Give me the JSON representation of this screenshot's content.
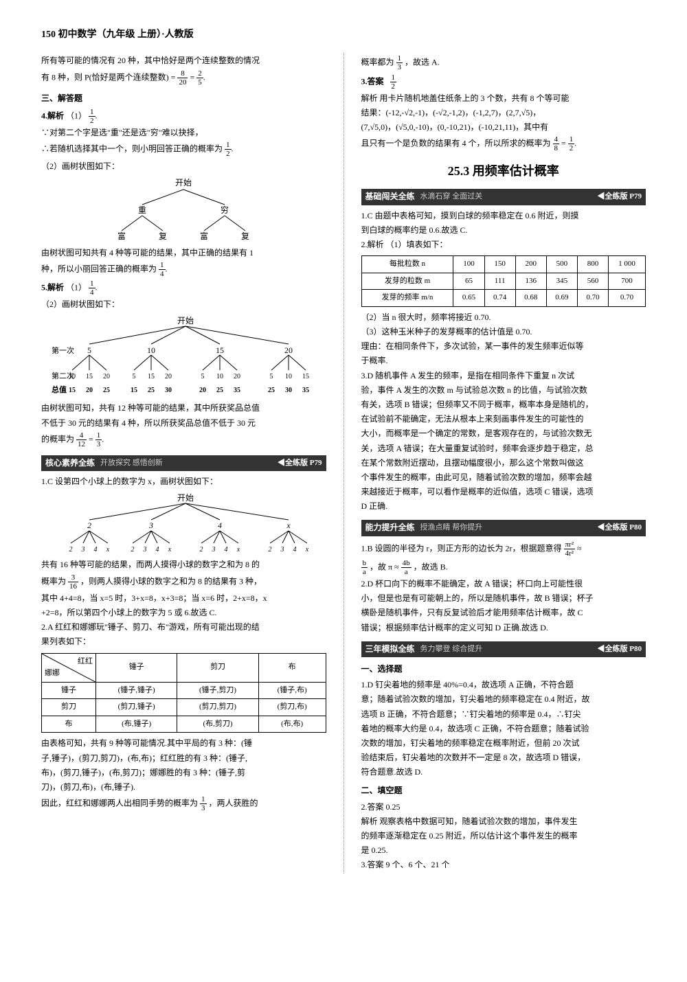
{
  "header": "150  初中数学（九年级  上册）·人教版",
  "left": {
    "intro_a": "所有等可能的情况有 20 种，其中恰好是两个连续整数的情况",
    "intro_b": "有 8 种，则 P(恰好是两个连续整数) = ",
    "intro_frac1_n": "8",
    "intro_frac1_d": "20",
    "intro_eq": " = ",
    "intro_frac2_n": "2",
    "intro_frac2_d": "5",
    "sec3": "三、解答题",
    "q4_label": "4.解析",
    "q4_1": "（1）",
    "q4_frac_n": "1",
    "q4_frac_d": "2",
    "q4_l1": "∵对第二个字是选\"重\"还是选\"穷\"难以抉择，",
    "q4_l2": "∴若随机选择其中一个，则小明回答正确的概率为 ",
    "q4_l3": "（2）画树状图如下：",
    "tree1": {
      "start": "开始",
      "l1": [
        "重",
        "穷"
      ],
      "l2": [
        "富",
        "复",
        "富",
        "复"
      ]
    },
    "q4_res1": "由树状图可知共有 4 种等可能的结果，其中正确的结果有 1",
    "q4_res2": "种，所以小丽回答正确的概率为 ",
    "q4_res_frac_n": "1",
    "q4_res_frac_d": "4",
    "q5_label": "5.解析",
    "q5_1": "（1）",
    "q5_frac_n": "1",
    "q5_frac_d": "4",
    "q5_l1": "（2）画树状图如下：",
    "tree2": {
      "start": "开始",
      "row1_label": "第一次",
      "row1": [
        "5",
        "10",
        "15",
        "20"
      ],
      "row2_label": "第二次",
      "row2": [
        "10",
        "15",
        "20",
        "5",
        "15",
        "20",
        "5",
        "10",
        "20",
        "5",
        "10",
        "15"
      ],
      "row3_label": "总值",
      "row3": [
        "15",
        "20",
        "25",
        "15",
        "25",
        "30",
        "20",
        "25",
        "35",
        "25",
        "30",
        "35"
      ]
    },
    "q5_res1": "由树状图可知，共有 12 种等可能的结果，其中所获奖品总值",
    "q5_res2": "不低于 30 元的结果有 4 种，所以所获奖品总值不低于 30 元",
    "q5_res3": "的概率为 ",
    "q5_res_f1n": "4",
    "q5_res_f1d": "12",
    "q5_res_eq": " = ",
    "q5_res_f2n": "1",
    "q5_res_f2d": "3",
    "bar1": {
      "title": "核心素养全练",
      "sub": "开放探究 感悟创新",
      "ref": "◀全练版 P79"
    },
    "b1_q1a": "1.C  设第四个小球上的数字为 x，画树状图如下：",
    "tree3": {
      "start": "开始",
      "row1": [
        "2",
        "3",
        "4",
        "x"
      ],
      "row2": [
        "2",
        "3",
        "4",
        "x",
        "2",
        "3",
        "4",
        "x",
        "2",
        "3",
        "4",
        "x",
        "2",
        "3",
        "4",
        "x"
      ]
    },
    "b1_q1b": "共有 16 种等可能的结果，而两人摸得小球的数字之和为 8 的",
    "b1_q1c": "概率为 ",
    "b1_q1_f1n": "3",
    "b1_q1_f1d": "16",
    "b1_q1d": "，则两人摸得小球的数字之和为 8 的结果有 3 种，",
    "b1_q1e": "其中 4+4=8，当 x=5 时，3+x=8，x+3=8；当 x=6 时，2+x=8，x",
    "b1_q1f": "+2=8，所以第四个小球上的数字为 5 或 6.故选 C.",
    "b1_q2a": "2.A  红红和娜娜玩\"锤子、剪刀、布\"游戏，所有可能出现的结",
    "b1_q2b": "果列表如下：",
    "table1": {
      "corner_a": "红红",
      "corner_b": "娜娜",
      "cols": [
        "锤子",
        "剪刀",
        "布"
      ],
      "rows": [
        {
          "h": "锤子",
          "c": [
            "(锤子,锤子)",
            "(锤子,剪刀)",
            "(锤子,布)"
          ]
        },
        {
          "h": "剪刀",
          "c": [
            "(剪刀,锤子)",
            "(剪刀,剪刀)",
            "(剪刀,布)"
          ]
        },
        {
          "h": "布",
          "c": [
            "(布,锤子)",
            "(布,剪刀)",
            "(布,布)"
          ]
        }
      ]
    },
    "b1_q2c": "由表格可知，共有 9 种等可能情况.其中平局的有 3 种：(锤",
    "b1_q2d": "子,锤子)，(剪刀,剪刀)，(布,布)；红红胜的有 3 种：(锤子,",
    "b1_q2e": "布)，(剪刀,锤子)，(布,剪刀)；娜娜胜的有 3 种：(锤子,剪",
    "b1_q2f": "刀)，(剪刀,布)，(布,锤子).",
    "b1_q2g": "因此，红红和娜娜两人出相同手势的概率为 ",
    "b1_q2_fn": "1",
    "b1_q2_fd": "3",
    "b1_q2h": "，两人获胜的"
  },
  "right": {
    "l1": "概率都为 ",
    "l1_fn": "1",
    "l1_fd": "3",
    "l1b": "，故选 A.",
    "q3_label": "3.答案",
    "q3_fn": "1",
    "q3_fd": "2",
    "q3_a": "解析  用卡片随机地盖住纸条上的 3 个数，共有 8 个等可能",
    "q3_b": "结果：(-12,-√2,-1)，(-√2,-1,2)，(-1,2,7)，(2,7,√5)，",
    "q3_c": "(7,√5,0)，(√5,0,-10)，(0,-10,21)，(-10,21,11)，其中有",
    "q3_d": "且只有一个是负数的结果有 4 个，所以所求的概率为 ",
    "q3_f1n": "4",
    "q3_f1d": "8",
    "q3_eq": " = ",
    "q3_f2n": "1",
    "q3_f2d": "2",
    "h2": "25.3  用频率估计概率",
    "bar2": {
      "title": "基础闯关全练",
      "sub": "水滴石穿 全面过关",
      "ref": "◀全练版 P79"
    },
    "r_q1": "1.C  由题中表格可知，摸到白球的频率稳定在 0.6 附近，则摸",
    "r_q1b": "到白球的概率约是 0.6.故选 C.",
    "r_q2": "2.解析  （1）填表如下：",
    "table2": {
      "r1h": "每批粒数 n",
      "r1": [
        "100",
        "150",
        "200",
        "500",
        "800",
        "1 000"
      ],
      "r2h": "发芽的粒数 m",
      "r2": [
        "65",
        "111",
        "136",
        "345",
        "560",
        "700"
      ],
      "r3h": "发芽的频率 m/n",
      "r3": [
        "0.65",
        "0.74",
        "0.68",
        "0.69",
        "0.70",
        "0.70"
      ]
    },
    "r_q2b": "（2）当 n 很大时，频率将接近 0.70.",
    "r_q2c": "（3）这种玉米种子的发芽概率的估计值是 0.70.",
    "r_q2d": "理由：在相同条件下，多次试验，某一事件的发生频率近似等",
    "r_q2e": "于概率.",
    "r_q3a": "3.D  随机事件 A 发生的频率，是指在相同条件下重复 n 次试",
    "r_q3b": "验，事件 A 发生的次数 m 与试验总次数 n 的比值，与试验次数",
    "r_q3c": "有关，选项 B 错误；但频率又不同于概率，概率本身是随机的，",
    "r_q3d": "在试验前不能确定，无法从根本上来刻画事件发生的可能性的",
    "r_q3e": "大小，而概率是一个确定的常数，是客观存在的，与试验次数无",
    "r_q3f": "关，选项 A 错误；在大量重复试验时，频率会逐步趋于稳定，总",
    "r_q3g": "在某个常数附近摆动，且摆动幅度很小，那么这个常数叫做这",
    "r_q3h": "个事件发生的概率，由此可见，随着试验次数的增加，频率会越",
    "r_q3i": "来越接近于概率，可以看作是概率的近似值，选项 C 错误，选项",
    "r_q3j": "D 正确.",
    "bar3": {
      "title": "能力提升全练",
      "sub": "授渔点睛 帮你提升",
      "ref": "◀全练版 P80"
    },
    "r2_q1a": "1.B  设圆的半径为 r，则正方形的边长为 2r，根据题意得",
    "r2_q1_f1n": "πr²",
    "r2_q1_f1d": "4r²",
    "r2_q1_approx": " ≈ ",
    "r2_q1_f2n": "b",
    "r2_q1_f2d": "a",
    "r2_q1b": "，故 π ≈ ",
    "r2_q1_f3n": "4b",
    "r2_q1_f3d": "a",
    "r2_q1c": "，故选 B.",
    "r2_q2a": "2.D  杯口向下的概率不能确定，故 A 错误；杯口向上可能性很",
    "r2_q2b": "小，但是也是有可能朝上的，所以是随机事件，故 B 错误；杯子",
    "r2_q2c": "横卧是随机事件，只有反复试验后才能用频率估计概率，故 C",
    "r2_q2d": "错误；根据频率估计概率的定义可知 D 正确.故选 D.",
    "bar4": {
      "title": "三年模拟全练",
      "sub": "务力攀登 综合提升",
      "ref": "◀全练版 P80"
    },
    "sec1": "一、选择题",
    "r3_q1a": "1.D  钉尖着地的频率是 40%=0.4，故选项 A 正确，不符合题",
    "r3_q1b": "意；随着试验次数的增加，钉尖着地的频率稳定在 0.4 附近，故",
    "r3_q1c": "选项 B 正确，不符合题意；∵钉尖着地的频率是 0.4，∴钉尖",
    "r3_q1d": "着地的概率大约是 0.4，故选项 C 正确，不符合题意；随着试验",
    "r3_q1e": "次数的增加，钉尖着地的频率稳定在概率附近，但前 20 次试",
    "r3_q1f": "验结束后，钉尖着地的次数并不一定是 8 次，故选项 D 错误，",
    "r3_q1g": "符合题意.故选 D.",
    "sec2": "二、填空题",
    "r3_q2a": "2.答案  0.25",
    "r3_q2b": "解析  观察表格中数据可知，随着试验次数的增加，事件发生",
    "r3_q2c": "的频率逐渐稳定在 0.25 附近，所以估计这个事件发生的概率",
    "r3_q2d": "是 0.25.",
    "r3_q3": "3.答案  9 个、6 个、21 个"
  }
}
